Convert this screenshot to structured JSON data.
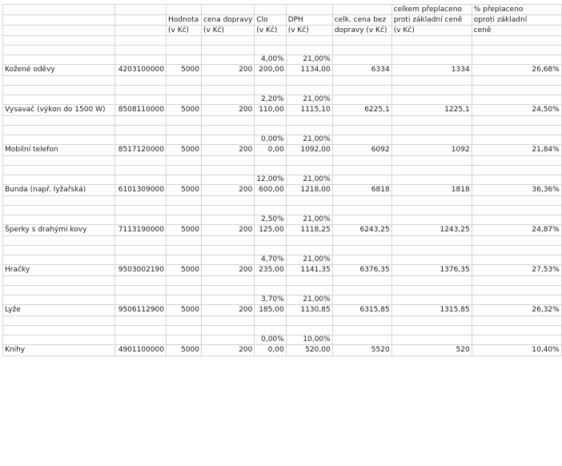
{
  "header": {
    "line1": [
      "",
      "",
      "",
      "celkem přeplaceno",
      "% přeplaceno"
    ],
    "hodnota": [
      "Hodnota",
      "(v Kč)"
    ],
    "doprava": [
      "cena dopravy",
      "(v Kč)"
    ],
    "clo": [
      "Clo",
      "(v Kč)"
    ],
    "dph": [
      "DPH",
      "(v Kč)"
    ],
    "celk": [
      "celk. cena bez",
      "dopravy (v Kč)"
    ],
    "preplaceno": [
      "celkem přeplaceno",
      "proti základní ceně",
      "(v Kč)"
    ],
    "procenta": [
      "% přeplaceno",
      "oproti základní",
      "ceně"
    ]
  },
  "rows": [
    {
      "name": "Kožené oděvy",
      "code": "4203100000",
      "value": "5000",
      "shipping": "200",
      "duty_rate": "4,00%",
      "vat_rate": "21,00%",
      "duty": "200,00",
      "vat": "1134,00",
      "total": "6334",
      "over": "1334",
      "pct": "26,68%"
    },
    {
      "name": "Vysavač (výkon do 1500 W)",
      "code": "8508110000",
      "value": "5000",
      "shipping": "200",
      "duty_rate": "2,20%",
      "vat_rate": "21,00%",
      "duty": "110,00",
      "vat": "1115,10",
      "total": "6225,1",
      "over": "1225,1",
      "pct": "24,50%"
    },
    {
      "name": "Mobilní telefon",
      "code": "8517120000",
      "value": "5000",
      "shipping": "200",
      "duty_rate": "0,00%",
      "vat_rate": "21,00%",
      "duty": "0,00",
      "vat": "1092,00",
      "total": "6092",
      "over": "1092",
      "pct": "21,84%"
    },
    {
      "name": "Bunda (např. lyžařská)",
      "code": "6101309000",
      "value": "5000",
      "shipping": "200",
      "duty_rate": "12,00%",
      "vat_rate": "21,00%",
      "duty": "600,00",
      "vat": "1218,00",
      "total": "6818",
      "over": "1818",
      "pct": "36,36%"
    },
    {
      "name": "Šperky s drahými kovy",
      "code": "7113190000",
      "value": "5000",
      "shipping": "200",
      "duty_rate": "2,50%",
      "vat_rate": "21,00%",
      "duty": "125,00",
      "vat": "1118,25",
      "total": "6243,25",
      "over": "1243,25",
      "pct": "24,87%"
    },
    {
      "name": "Hračky",
      "code": "9503002190",
      "value": "5000",
      "shipping": "200",
      "duty_rate": "4,70%",
      "vat_rate": "21,00%",
      "duty": "235,00",
      "vat": "1141,35",
      "total": "6376,35",
      "over": "1376,35",
      "pct": "27,53%"
    },
    {
      "name": "Lyže",
      "code": "9506112900",
      "value": "5000",
      "shipping": "200",
      "duty_rate": "3,70%",
      "vat_rate": "21,00%",
      "duty": "185,00",
      "vat": "1130,85",
      "total": "6315,85",
      "over": "1315,85",
      "pct": "26,32%"
    },
    {
      "name": "Knihy",
      "code": "4901100000",
      "value": "5000",
      "shipping": "200",
      "duty_rate": "0,00%",
      "vat_rate": "10,00%",
      "duty": "0,00",
      "vat": "520,00",
      "total": "5520",
      "over": "520",
      "pct": "10,40%"
    }
  ]
}
